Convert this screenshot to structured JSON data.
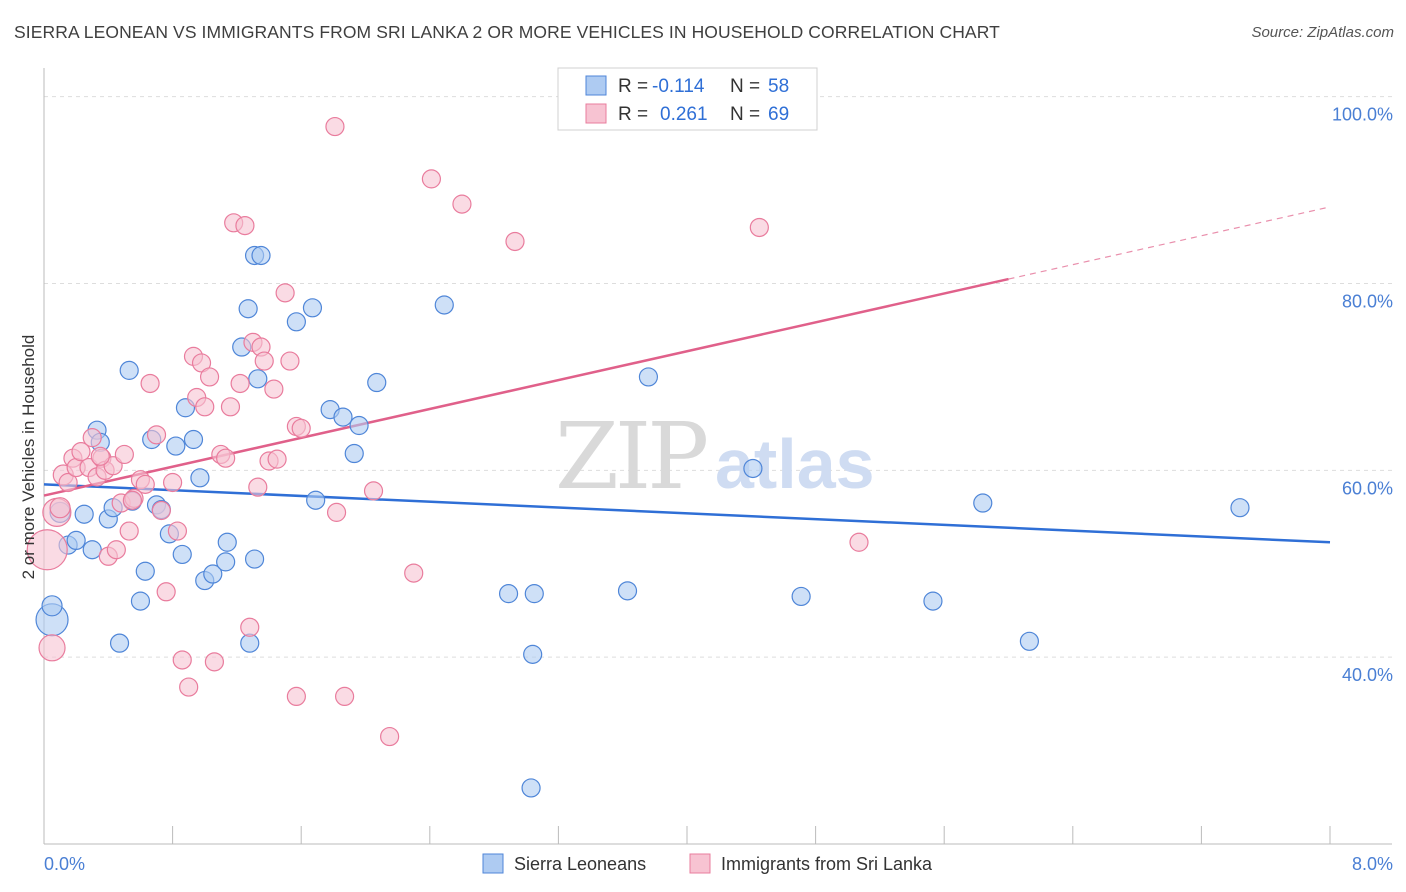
{
  "title": "SIERRA LEONEAN VS IMMIGRANTS FROM SRI LANKA 2 OR MORE VEHICLES IN HOUSEHOLD CORRELATION CHART",
  "source": "Source: ZipAtlas.com",
  "watermark": {
    "zip": "ZIP",
    "atlas": "atlas"
  },
  "legend": {
    "rows": [
      {
        "r_label": "R =",
        "r_value": "-0.114",
        "n_label": "N =",
        "n_value": "58"
      },
      {
        "r_label": "R =",
        "r_value": "0.261",
        "n_label": "N =",
        "n_value": "69"
      }
    ]
  },
  "bottom_legend": [
    "Sierra Leoneans",
    "Immigrants from Sri Lanka"
  ],
  "colors": {
    "blue_fill": "#aecbf2",
    "blue_stroke": "#4f86d8",
    "blue_line": "#2f6fd6",
    "pink_fill": "#f7c3d2",
    "pink_stroke": "#e97c9d",
    "pink_line": "#e0608a",
    "tick": "#4a7fd4",
    "grid": "#dddddd"
  },
  "chart_data": {
    "type": "scatter",
    "title": "SIERRA LEONEAN VS IMMIGRANTS FROM SRI LANKA 2 OR MORE VEHICLES IN HOUSEHOLD CORRELATION CHART",
    "xlabel": "",
    "ylabel": "2 or more Vehicles in Household",
    "xlim": [
      0,
      8
    ],
    "ylim": [
      20,
      102
    ],
    "x_tick_labels": [
      "0.0%",
      "8.0%"
    ],
    "y_ticks": [
      40,
      60,
      80,
      100
    ],
    "y_tick_labels": [
      "40.0%",
      "60.0%",
      "80.0%",
      "100.0%"
    ],
    "grid": true,
    "legend_position": "top-center",
    "series": [
      {
        "name": "Sierra Leoneans",
        "r": -0.114,
        "n": 58,
        "trend": {
          "x": [
            0.0,
            8.0
          ],
          "y": [
            58.5,
            52.3
          ],
          "dashed_from": null
        },
        "points": [
          [
            0.05,
            44.0,
            16
          ],
          [
            0.05,
            45.5,
            10
          ],
          [
            0.1,
            55.5,
            10
          ],
          [
            0.15,
            52.0,
            9
          ],
          [
            0.2,
            52.5,
            9
          ],
          [
            0.25,
            55.3,
            9
          ],
          [
            0.3,
            51.5,
            9
          ],
          [
            0.33,
            64.3,
            9
          ],
          [
            0.35,
            63.0,
            9
          ],
          [
            0.4,
            54.8,
            9
          ],
          [
            0.43,
            56.0,
            9
          ],
          [
            0.47,
            41.5,
            9
          ],
          [
            0.53,
            70.7,
            9
          ],
          [
            0.55,
            56.7,
            9
          ],
          [
            0.6,
            46.0,
            9
          ],
          [
            0.63,
            49.2,
            9
          ],
          [
            0.67,
            63.3,
            9
          ],
          [
            0.7,
            56.3,
            9
          ],
          [
            0.73,
            55.8,
            9
          ],
          [
            0.78,
            53.2,
            9
          ],
          [
            0.82,
            62.6,
            9
          ],
          [
            0.86,
            51.0,
            9
          ],
          [
            0.88,
            66.7,
            9
          ],
          [
            0.93,
            63.3,
            9
          ],
          [
            0.97,
            59.2,
            9
          ],
          [
            1.0,
            48.2,
            9
          ],
          [
            1.05,
            48.9,
            9
          ],
          [
            1.13,
            50.2,
            9
          ],
          [
            1.14,
            52.3,
            9
          ],
          [
            1.23,
            73.2,
            9
          ],
          [
            1.27,
            77.3,
            9
          ],
          [
            1.31,
            83.0,
            9
          ],
          [
            1.33,
            69.8,
            9
          ],
          [
            1.35,
            83.0,
            9
          ],
          [
            1.28,
            41.5,
            9
          ],
          [
            1.31,
            50.5,
            9
          ],
          [
            1.57,
            75.9,
            9
          ],
          [
            1.67,
            77.4,
            9
          ],
          [
            1.69,
            56.8,
            9
          ],
          [
            1.78,
            66.5,
            9
          ],
          [
            1.86,
            65.7,
            9
          ],
          [
            1.93,
            61.8,
            9
          ],
          [
            1.96,
            64.8,
            9
          ],
          [
            2.07,
            69.4,
            9
          ],
          [
            2.49,
            77.7,
            9
          ],
          [
            2.89,
            46.8,
            9
          ],
          [
            3.05,
            46.8,
            9
          ],
          [
            3.04,
            40.3,
            9
          ],
          [
            3.03,
            26.0,
            9
          ],
          [
            3.63,
            47.1,
            9
          ],
          [
            3.76,
            70.0,
            9
          ],
          [
            4.41,
            60.2,
            9
          ],
          [
            4.71,
            46.5,
            9
          ],
          [
            5.53,
            46.0,
            9
          ],
          [
            5.84,
            56.5,
            9
          ],
          [
            6.13,
            41.7,
            9
          ],
          [
            7.44,
            56.0,
            9
          ],
          [
            3.0,
            29.0,
            0
          ]
        ]
      },
      {
        "name": "Immigrants from Sri Lanka",
        "r": 0.261,
        "n": 69,
        "trend": {
          "x": [
            0.0,
            8.0
          ],
          "y": [
            57.3,
            88.2
          ],
          "dashed_from": 6.0
        },
        "points": [
          [
            0.02,
            51.5,
            20
          ],
          [
            0.05,
            41.0,
            13
          ],
          [
            0.08,
            55.5,
            14
          ],
          [
            0.1,
            56.0,
            10
          ],
          [
            0.12,
            59.5,
            10
          ],
          [
            0.15,
            58.7,
            9
          ],
          [
            0.18,
            61.3,
            9
          ],
          [
            0.2,
            60.3,
            9
          ],
          [
            0.23,
            62.0,
            9
          ],
          [
            0.28,
            60.3,
            9
          ],
          [
            0.3,
            63.5,
            9
          ],
          [
            0.33,
            59.3,
            9
          ],
          [
            0.36,
            61.3,
            9
          ],
          [
            0.38,
            60.0,
            9
          ],
          [
            0.4,
            50.8,
            9
          ],
          [
            0.43,
            60.5,
            9
          ],
          [
            0.45,
            51.5,
            9
          ],
          [
            0.48,
            56.5,
            9
          ],
          [
            0.5,
            61.7,
            9
          ],
          [
            0.53,
            53.5,
            9
          ],
          [
            0.56,
            57.0,
            9
          ],
          [
            0.6,
            59.0,
            9
          ],
          [
            0.63,
            58.5,
            9
          ],
          [
            0.66,
            69.3,
            9
          ],
          [
            0.7,
            63.8,
            9
          ],
          [
            0.73,
            55.7,
            9
          ],
          [
            0.76,
            47.0,
            9
          ],
          [
            0.8,
            58.7,
            9
          ],
          [
            0.83,
            53.5,
            9
          ],
          [
            0.86,
            39.7,
            9
          ],
          [
            0.9,
            36.8,
            9
          ],
          [
            0.93,
            72.2,
            9
          ],
          [
            0.95,
            67.8,
            9
          ],
          [
            0.98,
            71.5,
            9
          ],
          [
            1.0,
            66.8,
            9
          ],
          [
            1.03,
            70.0,
            9
          ],
          [
            1.06,
            39.5,
            9
          ],
          [
            1.1,
            61.7,
            9
          ],
          [
            1.13,
            61.3,
            9
          ],
          [
            1.16,
            66.8,
            9
          ],
          [
            1.18,
            86.5,
            9
          ],
          [
            1.22,
            69.3,
            9
          ],
          [
            1.25,
            86.2,
            9
          ],
          [
            1.28,
            43.2,
            9
          ],
          [
            1.3,
            73.7,
            9
          ],
          [
            1.33,
            58.2,
            9
          ],
          [
            1.35,
            73.2,
            9
          ],
          [
            1.37,
            71.7,
            9
          ],
          [
            1.4,
            61.0,
            9
          ],
          [
            1.43,
            68.7,
            9
          ],
          [
            1.45,
            61.2,
            9
          ],
          [
            1.5,
            79.0,
            9
          ],
          [
            1.53,
            71.7,
            9
          ],
          [
            1.57,
            64.7,
            9
          ],
          [
            1.6,
            64.5,
            9
          ],
          [
            1.57,
            35.8,
            9
          ],
          [
            1.82,
            55.5,
            9
          ],
          [
            1.87,
            35.8,
            9
          ],
          [
            1.81,
            96.8,
            9
          ],
          [
            2.05,
            57.8,
            9
          ],
          [
            2.15,
            31.5,
            9
          ],
          [
            2.3,
            49.0,
            9
          ],
          [
            2.41,
            91.2,
            9
          ],
          [
            2.6,
            88.5,
            9
          ],
          [
            2.93,
            84.5,
            9
          ],
          [
            4.45,
            86.0,
            9
          ],
          [
            5.07,
            52.3,
            9
          ],
          [
            0.55,
            56.8,
            9
          ],
          [
            0.35,
            61.5,
            9
          ]
        ]
      }
    ]
  }
}
